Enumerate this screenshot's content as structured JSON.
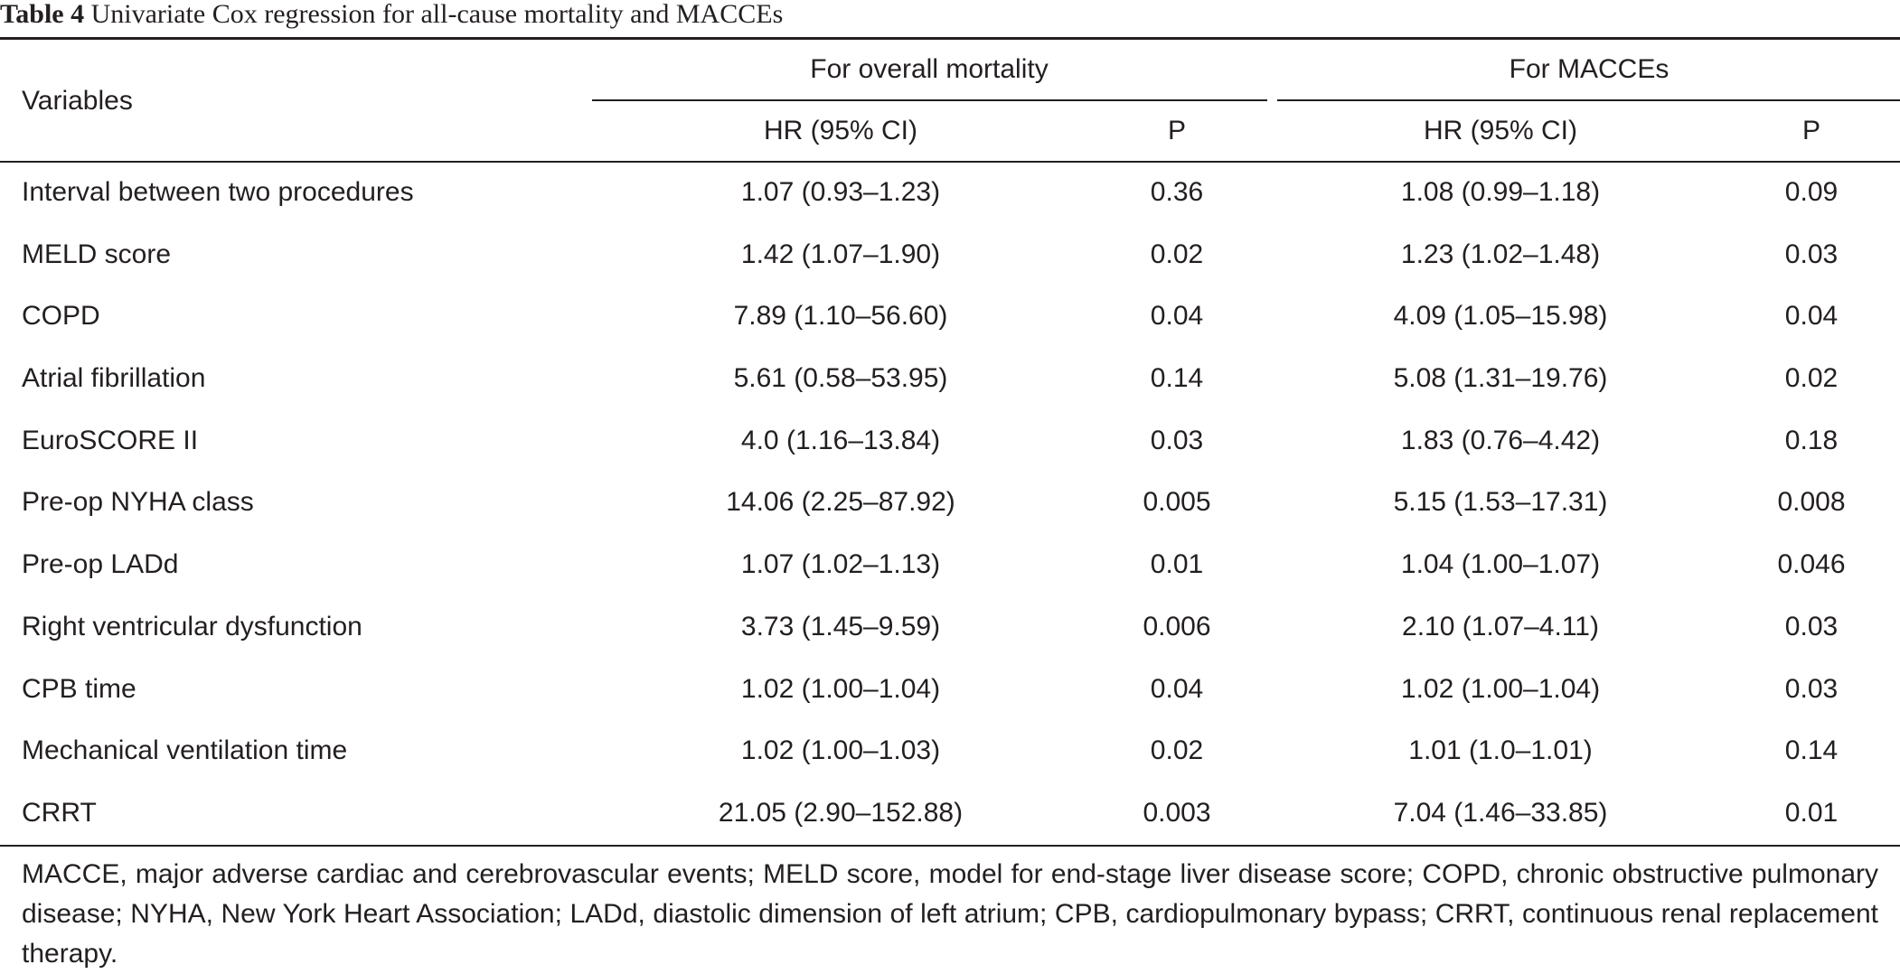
{
  "caption": {
    "label": "Table 4",
    "text": " Univariate Cox regression for all-cause mortality and MACCEs"
  },
  "header": {
    "variables": "Variables",
    "group1": "For overall mortality",
    "group2": "For MACCEs",
    "hr1": "HR (95% CI)",
    "p1": "P",
    "hr2": "HR (95% CI)",
    "p2": "P"
  },
  "rows": [
    {
      "variable": "Interval between two procedures",
      "hr_mortality": "1.07 (0.93–1.23)",
      "p_mortality": "0.36",
      "hr_macce": "1.08 (0.99–1.18)",
      "p_macce": "0.09"
    },
    {
      "variable": "MELD score",
      "hr_mortality": "1.42 (1.07–1.90)",
      "p_mortality": "0.02",
      "hr_macce": "1.23 (1.02–1.48)",
      "p_macce": "0.03"
    },
    {
      "variable": "COPD",
      "hr_mortality": "7.89 (1.10–56.60)",
      "p_mortality": "0.04",
      "hr_macce": "4.09 (1.05–15.98)",
      "p_macce": "0.04"
    },
    {
      "variable": "Atrial fibrillation",
      "hr_mortality": "5.61 (0.58–53.95)",
      "p_mortality": "0.14",
      "hr_macce": "5.08 (1.31–19.76)",
      "p_macce": "0.02"
    },
    {
      "variable": "EuroSCORE II",
      "hr_mortality": "4.0 (1.16–13.84)",
      "p_mortality": "0.03",
      "hr_macce": "1.83 (0.76–4.42)",
      "p_macce": "0.18"
    },
    {
      "variable": "Pre-op NYHA class",
      "hr_mortality": "14.06 (2.25–87.92)",
      "p_mortality": "0.005",
      "hr_macce": "5.15 (1.53–17.31)",
      "p_macce": "0.008"
    },
    {
      "variable": "Pre-op LADd",
      "hr_mortality": "1.07 (1.02–1.13)",
      "p_mortality": "0.01",
      "hr_macce": "1.04 (1.00–1.07)",
      "p_macce": "0.046"
    },
    {
      "variable": "Right ventricular dysfunction",
      "hr_mortality": "3.73 (1.45–9.59)",
      "p_mortality": "0.006",
      "hr_macce": "2.10 (1.07–4.11)",
      "p_macce": "0.03"
    },
    {
      "variable": "CPB time",
      "hr_mortality": "1.02 (1.00–1.04)",
      "p_mortality": "0.04",
      "hr_macce": "1.02 (1.00–1.04)",
      "p_macce": "0.03"
    },
    {
      "variable": "Mechanical ventilation time",
      "hr_mortality": "1.02 (1.00–1.03)",
      "p_mortality": "0.02",
      "hr_macce": "1.01 (1.0–1.01)",
      "p_macce": "0.14"
    },
    {
      "variable": "CRRT",
      "hr_mortality": "21.05 (2.90–152.88)",
      "p_mortality": "0.003",
      "hr_macce": "7.04 (1.46–33.85)",
      "p_macce": "0.01"
    }
  ],
  "footnote": "MACCE, major adverse cardiac and cerebrovascular events; MELD score, model for end-stage liver disease score; COPD, chronic obstructive pulmonary disease; NYHA, New York Heart Association; LADd, diastolic dimension of left atrium; CPB, cardiopulmonary bypass; CRRT, continuous renal replacement therapy."
}
